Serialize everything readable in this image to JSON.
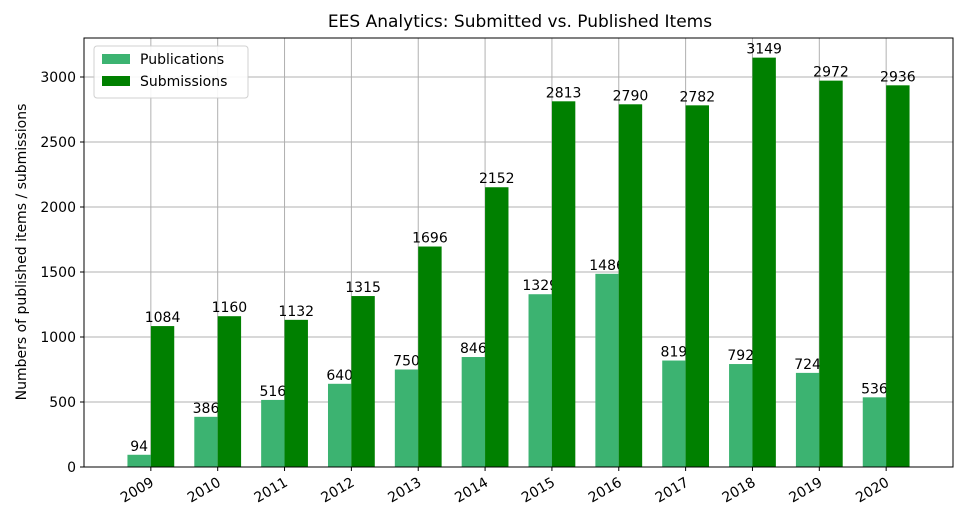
{
  "chart_data": {
    "type": "bar",
    "title": "EES Analytics: Submitted vs. Published Items",
    "ylabel": "Numbers of published items / submissions",
    "categories": [
      "2009",
      "2010",
      "2011",
      "2012",
      "2013",
      "2014",
      "2015",
      "2016",
      "2017",
      "2018",
      "2019",
      "2020"
    ],
    "series": [
      {
        "name": "Publications",
        "color": "#3cb371",
        "values": [
          94,
          386,
          516,
          640,
          750,
          846,
          1329,
          1486,
          819,
          792,
          724,
          536
        ]
      },
      {
        "name": "Submissions",
        "color": "#008000",
        "values": [
          1084,
          1160,
          1132,
          1315,
          1696,
          2152,
          2813,
          2790,
          2782,
          3149,
          2972,
          2936
        ]
      }
    ],
    "ylim": [
      0,
      3300
    ],
    "yticks": [
      0,
      500,
      1000,
      1500,
      2000,
      2500,
      3000
    ],
    "grid": true,
    "legend": "upper left"
  }
}
